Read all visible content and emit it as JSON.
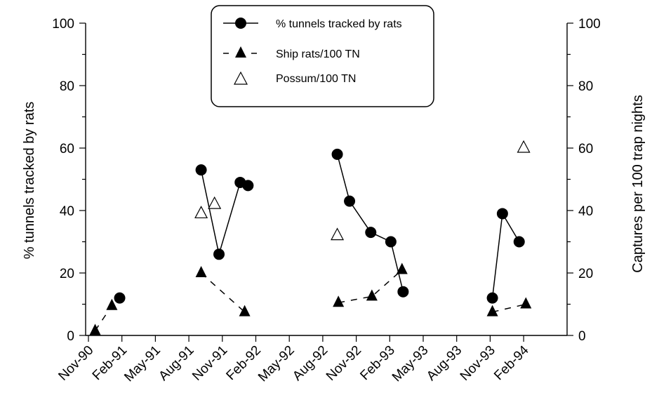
{
  "chart_data": {
    "type": "line",
    "x_tick_labels": [
      "Nov-90",
      "Feb-91",
      "May-91",
      "Aug-91",
      "Nov-91",
      "Feb-92",
      "May-92",
      "Aug-92",
      "Nov-92",
      "Feb-93",
      "May-93",
      "Aug-93",
      "Nov-93",
      "Feb-94"
    ],
    "ylabel_left": "% tunnels tracked by rats",
    "ylabel_right": "Captures per 100 trap nights",
    "ylim_left": [
      0,
      100
    ],
    "ylim_right": [
      0,
      100
    ],
    "y_ticks_left": [
      "0",
      "20",
      "40",
      "60",
      "80",
      "100"
    ],
    "y_ticks_right": [
      "0",
      "20",
      "40",
      "60",
      "80",
      "100"
    ],
    "x_unit": "months since Nov-90",
    "legend_position": "top-center",
    "series": [
      {
        "name": "% tunnels tracked by rats",
        "axis": "left",
        "marker": "filled-circle",
        "line": "solid",
        "segments": [
          [
            [
              2.8,
              12
            ]
          ],
          [
            [
              10.1,
              53
            ],
            [
              11.7,
              26
            ],
            [
              13.6,
              49
            ],
            [
              14.3,
              48
            ]
          ],
          [
            [
              22.3,
              58
            ],
            [
              23.4,
              43
            ],
            [
              25.3,
              33
            ],
            [
              27.1,
              30
            ],
            [
              28.2,
              14
            ]
          ],
          [
            [
              36.2,
              12
            ],
            [
              37.1,
              39
            ],
            [
              38.6,
              30
            ]
          ]
        ]
      },
      {
        "name": "Ship rats/100 TN",
        "axis": "right",
        "marker": "filled-triangle",
        "line": "dashed",
        "segments": [
          [
            [
              0.6,
              1.5
            ],
            [
              2.1,
              9.5
            ]
          ],
          [
            [
              10.1,
              20
            ],
            [
              14.0,
              7.5
            ]
          ],
          [
            [
              22.4,
              10.5
            ],
            [
              25.4,
              12.5
            ],
            [
              28.1,
              21
            ]
          ],
          [
            [
              36.2,
              7.5
            ],
            [
              39.2,
              10
            ]
          ]
        ]
      },
      {
        "name": "Possum/100 TN",
        "axis": "right",
        "marker": "open-triangle",
        "line": "none",
        "segments": [
          [
            [
              10.1,
              39
            ],
            [
              11.3,
              42
            ]
          ],
          [
            [
              22.3,
              32
            ]
          ],
          [
            [
              39.0,
              60
            ]
          ]
        ]
      }
    ]
  },
  "colors": {
    "ink": "#000000",
    "background": "#ffffff"
  }
}
